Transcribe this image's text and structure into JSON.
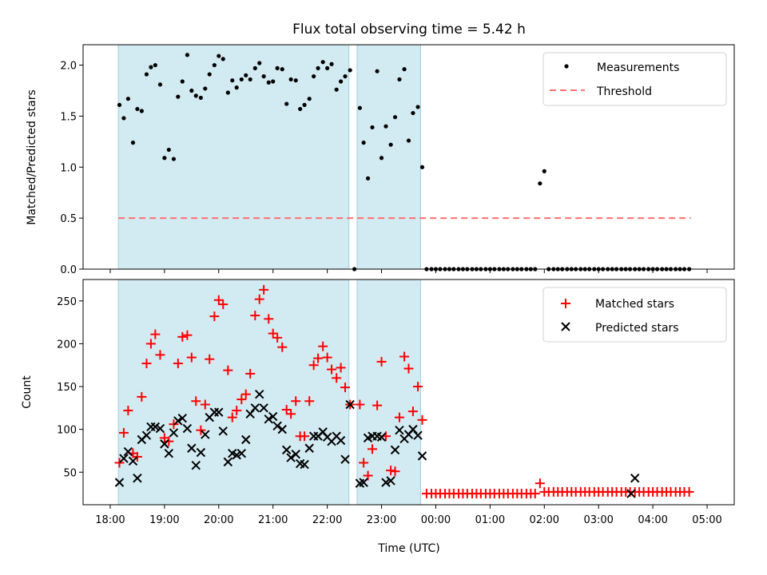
{
  "chart_data": [
    {
      "type": "scatter",
      "title": "Flux total observing time = 5.42 h",
      "ylabel": "Matched/Predicted stars",
      "xlabel": "",
      "ylim": [
        0,
        2.2
      ],
      "yticks": [
        "0.0",
        "0.5",
        "1.0",
        "1.5",
        "2.0"
      ],
      "ytick_values": [
        0,
        0.5,
        1.0,
        1.5,
        2.0
      ],
      "shaded_spans": [
        [
          0.15,
          4.4
        ],
        [
          4.55,
          5.72
        ]
      ],
      "threshold": {
        "name": "Threshold",
        "value": 0.5,
        "x_range": [
          0.15,
          10.7
        ],
        "color": "#ff7070"
      },
      "legend": [
        "Measurements",
        "Threshold"
      ],
      "series": [
        {
          "name": "Measurements",
          "color": "#000000",
          "x": [
            0.17,
            0.25,
            0.33,
            0.42,
            0.5,
            0.58,
            0.67,
            0.75,
            0.83,
            0.92,
            1.0,
            1.08,
            1.17,
            1.25,
            1.33,
            1.42,
            1.5,
            1.58,
            1.67,
            1.75,
            1.83,
            1.92,
            2.0,
            2.08,
            2.17,
            2.25,
            2.33,
            2.42,
            2.5,
            2.58,
            2.67,
            2.75,
            2.83,
            2.92,
            3.0,
            3.08,
            3.17,
            3.25,
            3.33,
            3.42,
            3.5,
            3.58,
            3.67,
            3.75,
            3.83,
            3.92,
            4.0,
            4.08,
            4.17,
            4.25,
            4.33,
            4.42,
            4.6,
            4.67,
            4.75,
            4.83,
            4.92,
            5.0,
            5.08,
            5.17,
            5.25,
            5.33,
            5.42,
            5.5,
            5.58,
            5.67,
            5.75,
            5.83,
            5.92,
            6.0,
            6.08,
            6.17,
            6.25,
            6.33,
            6.42,
            6.5,
            6.58,
            6.67,
            6.75,
            6.83,
            6.92,
            7.0,
            7.08,
            7.17,
            7.25,
            7.33,
            7.42,
            7.5,
            7.58,
            7.67,
            7.75,
            7.83,
            7.92,
            8.0,
            8.08,
            8.17,
            8.25,
            8.33,
            8.42,
            8.5,
            8.58,
            8.67,
            8.75,
            8.83,
            8.92,
            9.0,
            9.08,
            9.17,
            9.25,
            9.33,
            9.42,
            9.5,
            9.58,
            9.67,
            9.75,
            9.83,
            9.92,
            10.0,
            10.08,
            10.17,
            10.25,
            10.33,
            10.42,
            10.5,
            10.58,
            10.67,
            4.5
          ],
          "y": [
            1.61,
            1.48,
            1.67,
            1.24,
            1.57,
            1.55,
            1.91,
            1.98,
            2.0,
            1.81,
            1.09,
            1.17,
            1.08,
            1.69,
            1.84,
            2.1,
            1.75,
            1.7,
            1.68,
            1.77,
            1.91,
            2.0,
            2.09,
            2.06,
            1.73,
            1.85,
            1.78,
            1.86,
            1.9,
            1.86,
            1.97,
            2.02,
            1.89,
            1.83,
            1.84,
            1.97,
            1.96,
            1.62,
            1.86,
            1.85,
            1.57,
            1.61,
            1.67,
            1.89,
            1.97,
            2.03,
            1.97,
            2.01,
            1.76,
            1.84,
            1.89,
            1.95,
            1.58,
            1.24,
            0.89,
            1.39,
            1.94,
            1.09,
            1.4,
            1.22,
            1.49,
            1.86,
            1.96,
            1.26,
            1.53,
            1.59,
            1.0,
            0,
            0,
            0,
            0,
            0,
            0,
            0,
            0,
            0,
            0,
            0,
            0,
            0,
            0,
            0,
            0,
            0,
            0,
            0,
            0,
            0,
            0,
            0,
            0,
            0,
            0.84,
            0.96,
            0,
            0,
            0,
            0,
            0,
            0,
            0,
            0,
            0,
            0,
            0,
            0,
            0,
            0,
            0,
            0,
            0,
            0,
            0,
            0,
            0,
            0,
            0,
            0,
            0,
            0,
            0,
            0,
            0,
            0,
            0,
            0,
            0
          ]
        }
      ]
    },
    {
      "type": "scatter",
      "title": "",
      "ylabel": "Count",
      "xlabel": "Time (UTC)",
      "ylim": [
        12,
        275
      ],
      "yticks": [
        "50",
        "100",
        "150",
        "200",
        "250"
      ],
      "ytick_values": [
        50,
        100,
        150,
        200,
        250
      ],
      "xlim": [
        -0.5,
        11.5
      ],
      "xtick_values": [
        0,
        1,
        2,
        3,
        4,
        5,
        6,
        7,
        8,
        9,
        10,
        11
      ],
      "xticks": [
        "18:00",
        "19:00",
        "20:00",
        "21:00",
        "22:00",
        "23:00",
        "00:00",
        "01:00",
        "02:00",
        "03:00",
        "04:00",
        "05:00"
      ],
      "shaded_spans": [
        [
          0.15,
          4.4
        ],
        [
          4.55,
          5.72
        ]
      ],
      "legend": [
        "Matched stars",
        "Predicted stars"
      ],
      "series": [
        {
          "name": "Matched stars",
          "color": "#ff0000",
          "x": [
            0.17,
            0.25,
            0.33,
            0.42,
            0.5,
            0.58,
            0.67,
            0.75,
            0.83,
            0.92,
            1.0,
            1.08,
            1.17,
            1.25,
            1.33,
            1.42,
            1.5,
            1.58,
            1.67,
            1.75,
            1.83,
            1.92,
            2.0,
            2.08,
            2.17,
            2.25,
            2.33,
            2.42,
            2.5,
            2.58,
            2.67,
            2.75,
            2.83,
            2.92,
            3.0,
            3.08,
            3.17,
            3.25,
            3.33,
            3.42,
            3.5,
            3.58,
            3.67,
            3.75,
            3.83,
            3.92,
            4.0,
            4.08,
            4.17,
            4.25,
            4.33,
            4.42,
            4.6,
            4.67,
            4.75,
            4.83,
            4.92,
            5.0,
            5.08,
            5.17,
            5.25,
            5.33,
            5.42,
            5.5,
            5.58,
            5.67,
            5.75,
            5.83,
            5.92,
            6.0,
            6.08,
            6.17,
            6.25,
            6.33,
            6.42,
            6.5,
            6.58,
            6.67,
            6.75,
            6.83,
            6.92,
            7.0,
            7.08,
            7.17,
            7.25,
            7.33,
            7.42,
            7.5,
            7.58,
            7.67,
            7.75,
            7.83,
            7.92,
            8.0,
            8.08,
            8.17,
            8.25,
            8.33,
            8.42,
            8.5,
            8.58,
            8.67,
            8.75,
            8.83,
            8.92,
            9.0,
            9.08,
            9.17,
            9.25,
            9.33,
            9.42,
            9.5,
            9.58,
            9.67,
            9.75,
            9.83,
            9.92,
            10.0,
            10.08,
            10.17,
            10.25,
            10.33,
            10.42,
            10.5,
            10.58,
            10.67
          ],
          "y": [
            61,
            96,
            122,
            72,
            68,
            138,
            177,
            200,
            211,
            187,
            90,
            86,
            106,
            177,
            208,
            210,
            184,
            133,
            99,
            129,
            182,
            232,
            251,
            246,
            169,
            114,
            122,
            135,
            141,
            165,
            233,
            252,
            263,
            229,
            212,
            207,
            196,
            123,
            118,
            133,
            92,
            92,
            133,
            175,
            183,
            197,
            184,
            170,
            160,
            172,
            149,
            129,
            129,
            61,
            46,
            77,
            128,
            179,
            92,
            52,
            51,
            114,
            185,
            171,
            121,
            150,
            111,
            25,
            25,
            25,
            25,
            25,
            25,
            25,
            25,
            25,
            25,
            25,
            25,
            25,
            25,
            25,
            25,
            25,
            25,
            25,
            25,
            25,
            25,
            25,
            25,
            25,
            37,
            27,
            27,
            27,
            27,
            27,
            27,
            27,
            27,
            27,
            27,
            27,
            27,
            27,
            27,
            27,
            27,
            27,
            27,
            27,
            27,
            27,
            27,
            27,
            27,
            27,
            27,
            27,
            27,
            27,
            27,
            27,
            27,
            27
          ]
        },
        {
          "name": "Predicted stars",
          "color": "#000000",
          "x": [
            0.17,
            0.25,
            0.33,
            0.42,
            0.5,
            0.58,
            0.67,
            0.75,
            0.83,
            0.92,
            1.0,
            1.08,
            1.17,
            1.25,
            1.33,
            1.42,
            1.5,
            1.58,
            1.67,
            1.75,
            1.83,
            1.92,
            2.0,
            2.08,
            2.17,
            2.25,
            2.33,
            2.42,
            2.5,
            2.58,
            2.67,
            2.75,
            2.83,
            2.92,
            3.0,
            3.08,
            3.17,
            3.25,
            3.33,
            3.42,
            3.5,
            3.58,
            3.67,
            3.75,
            3.83,
            3.92,
            4.0,
            4.08,
            4.17,
            4.25,
            4.33,
            4.42,
            4.6,
            4.67,
            4.75,
            4.83,
            4.92,
            5.0,
            5.08,
            5.17,
            5.25,
            5.33,
            5.42,
            5.5,
            5.58,
            5.67,
            5.75,
            9.6,
            9.67
          ],
          "y": [
            38,
            66,
            74,
            63,
            43,
            88,
            93,
            103,
            103,
            101,
            83,
            72,
            96,
            110,
            113,
            101,
            78,
            58,
            73,
            94,
            114,
            120,
            120,
            98,
            62,
            72,
            70,
            72,
            88,
            118,
            125,
            141,
            125,
            112,
            115,
            104,
            100,
            76,
            67,
            71,
            60,
            59,
            78,
            92,
            92,
            97,
            91,
            86,
            92,
            87,
            65,
            129,
            37,
            38,
            90,
            92,
            92,
            91,
            38,
            40,
            76,
            99,
            89,
            94,
            100,
            93,
            69,
            25,
            43
          ],
          "y_note": "second value set"
        }
      ]
    }
  ],
  "legend_colors": {
    "measurements": "#000000",
    "threshold": "#ff7070",
    "matched": "#ff0000",
    "predicted": "#000000",
    "shade": "#add8e6"
  }
}
